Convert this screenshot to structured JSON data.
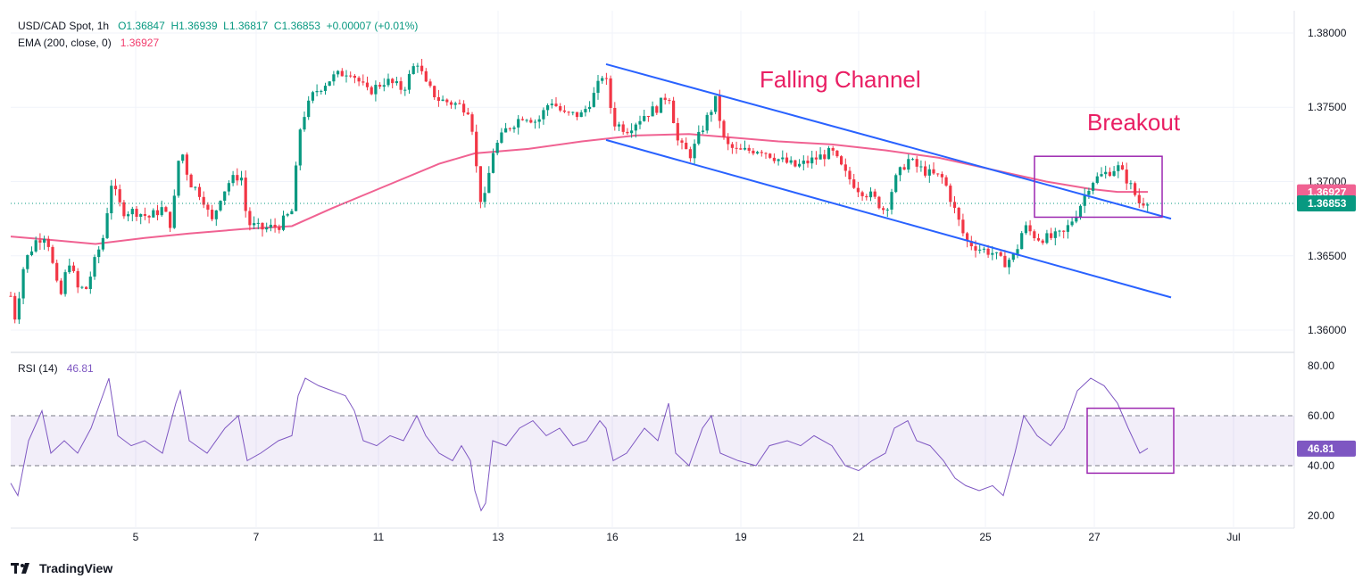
{
  "header": {
    "symbol": "USD/CAD Spot, 1h",
    "open": "O1.36847",
    "high": "H1.36939",
    "low": "L1.36817",
    "close": "C1.36853",
    "change": "+0.00007 (+0.01%)",
    "ema_label": "EMA (200, close, 0)",
    "ema_value": "1.36927",
    "rsi_label": "RSI (14)",
    "rsi_value": "46.81"
  },
  "annotations": {
    "channel": "Falling Channel",
    "breakout": "Breakout"
  },
  "footer": {
    "brand": "TradingView"
  },
  "colors": {
    "up": "#089981",
    "down": "#f23645",
    "ema": "#f06292",
    "channel": "#2962ff",
    "box": "#9c27b0",
    "rsi": "#7e57c2",
    "annotation": "#e91e63"
  },
  "chart_data": [
    {
      "type": "candlestick",
      "title": "USD/CAD Spot, 1h",
      "ylim": [
        1.3585,
        1.3815
      ],
      "y_ticks": [
        "1.38000",
        "1.37500",
        "1.37000",
        "1.36500",
        "1.36000"
      ],
      "x_ticks": [
        "5",
        "7",
        "11",
        "13",
        "16",
        "19",
        "21",
        "25",
        "27",
        "Jul"
      ],
      "last_price": "1.36853",
      "ema_last": "1.36927",
      "price_path": [
        [
          0,
          1.3623
        ],
        [
          5,
          1.3608
        ],
        [
          15,
          1.3645
        ],
        [
          28,
          1.366
        ],
        [
          40,
          1.3665
        ],
        [
          55,
          1.362
        ],
        [
          65,
          1.3648
        ],
        [
          75,
          1.3628
        ],
        [
          85,
          1.3628
        ],
        [
          95,
          1.3648
        ],
        [
          105,
          1.3665
        ],
        [
          112,
          1.37
        ],
        [
          125,
          1.368
        ],
        [
          140,
          1.368
        ],
        [
          155,
          1.3676
        ],
        [
          170,
          1.3682
        ],
        [
          180,
          1.367
        ],
        [
          190,
          1.3725
        ],
        [
          200,
          1.37
        ],
        [
          215,
          1.369
        ],
        [
          225,
          1.3672
        ],
        [
          235,
          1.369
        ],
        [
          245,
          1.37
        ],
        [
          258,
          1.3705
        ],
        [
          265,
          1.3672
        ],
        [
          280,
          1.3668
        ],
        [
          300,
          1.367
        ],
        [
          315,
          1.368
        ],
        [
          325,
          1.374
        ],
        [
          340,
          1.376
        ],
        [
          360,
          1.377
        ],
        [
          380,
          1.3775
        ],
        [
          400,
          1.376
        ],
        [
          420,
          1.3768
        ],
        [
          440,
          1.3762
        ],
        [
          455,
          1.3782
        ],
        [
          465,
          1.3765
        ],
        [
          480,
          1.3755
        ],
        [
          500,
          1.3752
        ],
        [
          515,
          1.3748
        ],
        [
          525,
          1.369
        ],
        [
          530,
          1.3685
        ],
        [
          540,
          1.372
        ],
        [
          555,
          1.3735
        ],
        [
          575,
          1.3745
        ],
        [
          590,
          1.374
        ],
        [
          605,
          1.3755
        ],
        [
          620,
          1.3745
        ],
        [
          640,
          1.3745
        ],
        [
          655,
          1.376
        ],
        [
          665,
          1.3775
        ],
        [
          675,
          1.374
        ],
        [
          690,
          1.3735
        ],
        [
          710,
          1.3745
        ],
        [
          725,
          1.375
        ],
        [
          737,
          1.376
        ],
        [
          748,
          1.3725
        ],
        [
          762,
          1.3718
        ],
        [
          778,
          1.374
        ],
        [
          790,
          1.3755
        ],
        [
          800,
          1.3725
        ],
        [
          815,
          1.372
        ],
        [
          840,
          1.3722
        ],
        [
          860,
          1.3715
        ],
        [
          880,
          1.371
        ],
        [
          900,
          1.3715
        ],
        [
          920,
          1.372
        ],
        [
          935,
          1.3705
        ],
        [
          950,
          1.3695
        ],
        [
          965,
          1.369
        ],
        [
          980,
          1.368
        ],
        [
          990,
          1.37
        ],
        [
          1005,
          1.3715
        ],
        [
          1015,
          1.371
        ],
        [
          1030,
          1.3705
        ],
        [
          1045,
          1.3702
        ],
        [
          1058,
          1.368
        ],
        [
          1070,
          1.366
        ],
        [
          1085,
          1.3655
        ],
        [
          1100,
          1.3652
        ],
        [
          1112,
          1.3645
        ],
        [
          1125,
          1.365
        ],
        [
          1135,
          1.367
        ],
        [
          1150,
          1.3662
        ],
        [
          1165,
          1.3662
        ],
        [
          1180,
          1.3665
        ],
        [
          1195,
          1.368
        ],
        [
          1210,
          1.37
        ],
        [
          1225,
          1.3705
        ],
        [
          1240,
          1.371
        ],
        [
          1252,
          1.37
        ],
        [
          1265,
          1.3685
        ],
        [
          1274,
          1.3688
        ]
      ],
      "ema_path": [
        [
          0,
          1.3663
        ],
        [
          40,
          1.3661
        ],
        [
          95,
          1.3658
        ],
        [
          150,
          1.3662
        ],
        [
          200,
          1.3665
        ],
        [
          260,
          1.3668
        ],
        [
          315,
          1.367
        ],
        [
          360,
          1.3682
        ],
        [
          420,
          1.3697
        ],
        [
          480,
          1.3712
        ],
        [
          520,
          1.3719
        ],
        [
          580,
          1.3722
        ],
        [
          640,
          1.3727
        ],
        [
          700,
          1.3731
        ],
        [
          760,
          1.3732
        ],
        [
          800,
          1.373
        ],
        [
          860,
          1.3727
        ],
        [
          920,
          1.3725
        ],
        [
          980,
          1.3721
        ],
        [
          1040,
          1.3716
        ],
        [
          1100,
          1.3708
        ],
        [
          1160,
          1.37
        ],
        [
          1210,
          1.3695
        ],
        [
          1240,
          1.3693
        ],
        [
          1274,
          1.3693
        ]
      ],
      "channel_upper": [
        [
          667,
          1.3779
        ],
        [
          1300,
          1.3675
        ]
      ],
      "channel_lower": [
        [
          667,
          1.3728
        ],
        [
          1300,
          1.3622
        ]
      ]
    },
    {
      "type": "line",
      "title": "RSI (14)",
      "ylim": [
        15,
        85
      ],
      "y_ticks": [
        "80.00",
        "60.00",
        "40.00",
        "20.00"
      ],
      "band": [
        40,
        60
      ],
      "last_value": "46.81",
      "rsi_path": [
        [
          0,
          33
        ],
        [
          8,
          28
        ],
        [
          20,
          50
        ],
        [
          35,
          62
        ],
        [
          45,
          45
        ],
        [
          60,
          50
        ],
        [
          75,
          45
        ],
        [
          90,
          55
        ],
        [
          105,
          70
        ],
        [
          110,
          75
        ],
        [
          120,
          52
        ],
        [
          135,
          48
        ],
        [
          150,
          50
        ],
        [
          170,
          45
        ],
        [
          185,
          65
        ],
        [
          190,
          70
        ],
        [
          200,
          50
        ],
        [
          220,
          45
        ],
        [
          240,
          55
        ],
        [
          255,
          60
        ],
        [
          265,
          42
        ],
        [
          280,
          45
        ],
        [
          300,
          50
        ],
        [
          315,
          52
        ],
        [
          322,
          68
        ],
        [
          330,
          75
        ],
        [
          345,
          72
        ],
        [
          360,
          70
        ],
        [
          375,
          68
        ],
        [
          385,
          62
        ],
        [
          395,
          50
        ],
        [
          410,
          48
        ],
        [
          425,
          52
        ],
        [
          440,
          50
        ],
        [
          455,
          60
        ],
        [
          465,
          52
        ],
        [
          480,
          45
        ],
        [
          495,
          42
        ],
        [
          505,
          48
        ],
        [
          515,
          42
        ],
        [
          520,
          30
        ],
        [
          527,
          22
        ],
        [
          532,
          25
        ],
        [
          540,
          50
        ],
        [
          555,
          48
        ],
        [
          570,
          55
        ],
        [
          585,
          58
        ],
        [
          600,
          52
        ],
        [
          615,
          55
        ],
        [
          630,
          48
        ],
        [
          645,
          50
        ],
        [
          660,
          58
        ],
        [
          667,
          55
        ],
        [
          675,
          42
        ],
        [
          690,
          45
        ],
        [
          710,
          55
        ],
        [
          725,
          50
        ],
        [
          737,
          65
        ],
        [
          745,
          45
        ],
        [
          760,
          40
        ],
        [
          775,
          55
        ],
        [
          785,
          60
        ],
        [
          795,
          45
        ],
        [
          815,
          42
        ],
        [
          835,
          40
        ],
        [
          850,
          48
        ],
        [
          870,
          50
        ],
        [
          885,
          48
        ],
        [
          900,
          52
        ],
        [
          920,
          48
        ],
        [
          935,
          40
        ],
        [
          950,
          38
        ],
        [
          965,
          42
        ],
        [
          980,
          45
        ],
        [
          990,
          55
        ],
        [
          1005,
          58
        ],
        [
          1015,
          50
        ],
        [
          1030,
          48
        ],
        [
          1045,
          42
        ],
        [
          1058,
          35
        ],
        [
          1070,
          32
        ],
        [
          1085,
          30
        ],
        [
          1100,
          32
        ],
        [
          1112,
          28
        ],
        [
          1125,
          45
        ],
        [
          1135,
          60
        ],
        [
          1150,
          52
        ],
        [
          1165,
          48
        ],
        [
          1180,
          55
        ],
        [
          1195,
          70
        ],
        [
          1210,
          75
        ],
        [
          1225,
          72
        ],
        [
          1240,
          65
        ],
        [
          1252,
          55
        ],
        [
          1265,
          45
        ],
        [
          1274,
          47
        ]
      ]
    }
  ]
}
